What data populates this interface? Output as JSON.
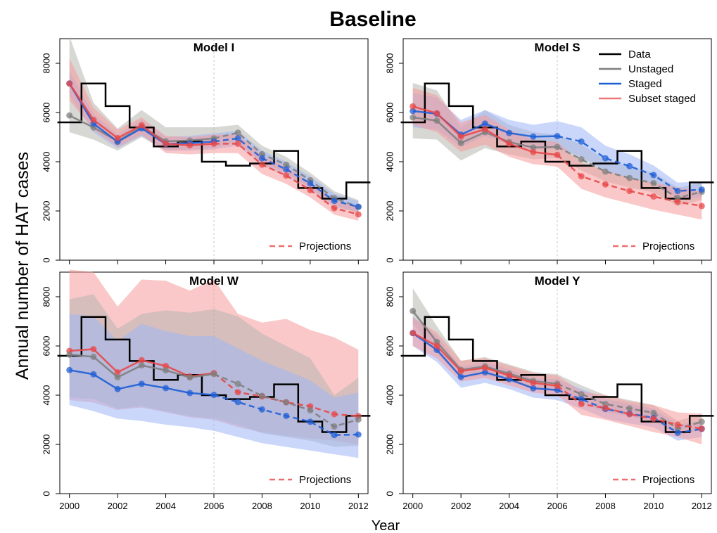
{
  "title": "Baseline",
  "xlabel": "Year",
  "ylabel": "Annual number of HAT cases",
  "chart_data": {
    "type": "line",
    "xlim": [
      1999.6,
      2012.4
    ],
    "ylim": [
      0,
      9000
    ],
    "x_ticks": [
      2000,
      2002,
      2004,
      2006,
      2008,
      2010,
      2012
    ],
    "y_ticks": [
      0,
      2000,
      4000,
      6000,
      8000
    ],
    "projection_start": 2006,
    "colors": {
      "data": "#000000",
      "unstaged": "#7f7f7f",
      "staged": "#1f5fd6",
      "subset": "#e8484a",
      "unstaged_band": "#b7b7b0",
      "staged_band": "#9fb6f5",
      "subset_band": "#f59a9a",
      "vline": "#c8c8c8"
    },
    "legend": {
      "items": [
        {
          "name": "Data",
          "key": "data"
        },
        {
          "name": "Unstaged",
          "key": "unstaged"
        },
        {
          "name": "Staged",
          "key": "staged"
        },
        {
          "name": "Subset staged",
          "key": "subset"
        }
      ],
      "projection_label": "Projections"
    },
    "data_step": {
      "years": [
        2000,
        2001,
        2002,
        2003,
        2004,
        2005,
        2006,
        2007,
        2008,
        2009,
        2010,
        2011,
        2012
      ],
      "values": [
        5600,
        7180,
        6260,
        5390,
        4620,
        4820,
        4000,
        3840,
        3930,
        4440,
        2930,
        2500,
        3160
      ]
    },
    "panels": [
      {
        "name": "Model I",
        "series": [
          {
            "key": "unstaged",
            "x": [
              2000,
              2001,
              2002,
              2003,
              2004,
              2005,
              2006,
              2007,
              2008,
              2009,
              2010,
              2011,
              2012
            ],
            "y": [
              5880,
              5390,
              4840,
              5410,
              4830,
              4860,
              4950,
              5180,
              4310,
              3880,
              3250,
              2520,
              2170
            ],
            "lo": [
              5200,
              4900,
              4450,
              5000,
              4450,
              4500,
              4550,
              4800,
              3950,
              3550,
              2950,
              2250,
              1900
            ],
            "hi": [
              9100,
              6400,
              5350,
              6100,
              5400,
              5400,
              5400,
              5500,
              4650,
              4200,
              3550,
              2800,
              2450
            ]
          },
          {
            "key": "staged",
            "x": [
              2000,
              2001,
              2002,
              2003,
              2004,
              2005,
              2006,
              2007,
              2008,
              2009,
              2010,
              2011,
              2012
            ],
            "y": [
              7180,
              5550,
              4810,
              5360,
              4720,
              4750,
              4820,
              4950,
              4140,
              3690,
              3120,
              2410,
              2170
            ],
            "lo": [
              6700,
              5200,
              4550,
              5050,
              4450,
              4450,
              4500,
              4650,
              3850,
              3400,
              2850,
              2150,
              1950
            ],
            "hi": [
              7700,
              5950,
              5100,
              5700,
              5000,
              5050,
              5150,
              5250,
              4450,
              4000,
              3400,
              2700,
              2400
            ]
          },
          {
            "key": "subset",
            "x": [
              2000,
              2001,
              2002,
              2003,
              2004,
              2005,
              2006,
              2007,
              2008,
              2009,
              2010,
              2011,
              2012
            ],
            "y": [
              7180,
              5700,
              4960,
              5480,
              4730,
              4670,
              4730,
              4730,
              3880,
              3440,
              2850,
              2110,
              1860
            ],
            "lo": [
              6500,
              5300,
              4600,
              5100,
              4350,
              4300,
              4350,
              4350,
              3500,
              3100,
              2550,
              1850,
              1600
            ],
            "hi": [
              8200,
              6200,
              5300,
              5800,
              5050,
              5000,
              5100,
              5100,
              4250,
              3800,
              3150,
              2450,
              2150
            ]
          }
        ]
      },
      {
        "name": "Model S",
        "series": [
          {
            "key": "unstaged",
            "x": [
              2000,
              2001,
              2002,
              2003,
              2004,
              2005,
              2006,
              2007,
              2008,
              2009,
              2010,
              2011,
              2012
            ],
            "y": [
              5800,
              5670,
              4760,
              5200,
              4800,
              4580,
              4600,
              4100,
              3600,
              3340,
              3130,
              2530,
              2780
            ],
            "lo": [
              4950,
              4900,
              4050,
              4550,
              4300,
              4100,
              4150,
              3650,
              3200,
              2950,
              2750,
              2200,
              2450
            ],
            "hi": [
              7200,
              6900,
              5400,
              6100,
              5500,
              5200,
              5100,
              4700,
              4100,
              3800,
              3550,
              2950,
              3150
            ]
          },
          {
            "key": "staged",
            "x": [
              2000,
              2001,
              2002,
              2003,
              2004,
              2005,
              2006,
              2007,
              2008,
              2009,
              2010,
              2011,
              2012
            ],
            "y": [
              6060,
              5950,
              5100,
              5550,
              5170,
              5020,
              5040,
              4820,
              4140,
              3820,
              3460,
              2810,
              2870
            ],
            "lo": [
              5400,
              5300,
              4600,
              5050,
              4700,
              4500,
              4550,
              4200,
              3600,
              3350,
              3050,
              2500,
              2550
            ],
            "hi": [
              6800,
              6600,
              5700,
              6100,
              5700,
              5500,
              5650,
              5400,
              4650,
              4300,
              3850,
              3150,
              3200
            ]
          },
          {
            "key": "subset",
            "x": [
              2000,
              2001,
              2002,
              2003,
              2004,
              2005,
              2006,
              2007,
              2008,
              2009,
              2010,
              2011,
              2012
            ],
            "y": [
              6250,
              5970,
              5020,
              5320,
              4730,
              4390,
              4280,
              3410,
              3080,
              2810,
              2590,
              2370,
              2200
            ],
            "lo": [
              5500,
              5200,
              4400,
              4700,
              4200,
              3900,
              3800,
              2900,
              2550,
              2300,
              2050,
              1850,
              1650
            ],
            "hi": [
              7000,
              6700,
              5600,
              5900,
              5300,
              4900,
              4800,
              3950,
              3650,
              3350,
              3150,
              2950,
              2800
            ]
          }
        ]
      },
      {
        "name": "Model W",
        "series": [
          {
            "key": "subset",
            "x": [
              2000,
              2001,
              2002,
              2003,
              2004,
              2005,
              2006,
              2007,
              2008,
              2009,
              2010,
              2011,
              2012
            ],
            "y": [
              5800,
              5870,
              4930,
              5420,
              5190,
              4760,
              4900,
              4120,
              3950,
              3710,
              3550,
              3230,
              3150
            ],
            "lo": [
              3800,
              3700,
              3400,
              3500,
              3300,
              3100,
              3000,
              2700,
              2500,
              2350,
              2250,
              2150,
              2000
            ],
            "hi": [
              9100,
              9000,
              7600,
              8700,
              8650,
              8250,
              8700,
              7300,
              6950,
              7100,
              6650,
              6350,
              5850
            ]
          },
          {
            "key": "unstaged",
            "x": [
              2000,
              2001,
              2002,
              2003,
              2004,
              2005,
              2006,
              2007,
              2008,
              2009,
              2010,
              2011,
              2012
            ],
            "y": [
              5650,
              5560,
              4730,
              5210,
              5010,
              4720,
              4860,
              4460,
              3970,
              3710,
              3390,
              2730,
              3010
            ],
            "lo": [
              3900,
              3850,
              3450,
              3550,
              3350,
              3150,
              3050,
              2800,
              2450,
              2300,
              2150,
              1900,
              1950
            ],
            "hi": [
              7900,
              8100,
              6700,
              7300,
              7450,
              7350,
              7500,
              7200,
              6500,
              6000,
              5500,
              4000,
              4700
            ]
          },
          {
            "key": "staged",
            "x": [
              2000,
              2001,
              2002,
              2003,
              2004,
              2005,
              2006,
              2007,
              2008,
              2009,
              2010,
              2011,
              2012
            ],
            "y": [
              5020,
              4850,
              4250,
              4460,
              4290,
              4090,
              4010,
              3720,
              3420,
              3160,
              2920,
              2380,
              2400
            ],
            "lo": [
              3600,
              3350,
              3050,
              2950,
              2800,
              2700,
              2550,
              2300,
              2050,
              1900,
              1750,
              1600,
              1450
            ],
            "hi": [
              7300,
              7200,
              6200,
              6900,
              6600,
              6400,
              6400,
              5900,
              5400,
              5000,
              4600,
              3900,
              4100
            ]
          }
        ]
      },
      {
        "name": "Model Y",
        "series": [
          {
            "key": "unstaged",
            "x": [
              2000,
              2001,
              2002,
              2003,
              2004,
              2005,
              2006,
              2007,
              2008,
              2009,
              2010,
              2011,
              2012
            ],
            "y": [
              7420,
              6160,
              5030,
              5170,
              4870,
              4580,
              4460,
              4040,
              3640,
              3460,
              3280,
              2640,
              2920
            ],
            "lo": [
              6900,
              5700,
              4700,
              4800,
              4550,
              4250,
              4150,
              3700,
              3300,
              3150,
              2950,
              2350,
              2600
            ],
            "hi": [
              8350,
              6800,
              5400,
              5550,
              5250,
              4950,
              4850,
              4400,
              4000,
              3800,
              3600,
              2950,
              3250
            ]
          },
          {
            "key": "staged",
            "x": [
              2000,
              2001,
              2002,
              2003,
              2004,
              2005,
              2006,
              2007,
              2008,
              2009,
              2010,
              2011,
              2012
            ],
            "y": [
              6520,
              5840,
              4740,
              4930,
              4650,
              4280,
              4210,
              3840,
              3440,
              3250,
              3080,
              2470,
              2630
            ],
            "lo": [
              6000,
              5350,
              4300,
              4500,
              4250,
              3900,
              3800,
              3450,
              3050,
              2850,
              2700,
              2150,
              2300
            ],
            "hi": [
              7200,
              6400,
              5150,
              5350,
              5050,
              4700,
              4650,
              4250,
              3850,
              3650,
              3450,
              2800,
              2950
            ]
          },
          {
            "key": "subset",
            "x": [
              2000,
              2001,
              2002,
              2003,
              2004,
              2005,
              2006,
              2007,
              2008,
              2009,
              2010,
              2011,
              2012
            ],
            "y": [
              6530,
              6000,
              4980,
              5110,
              4800,
              4500,
              4380,
              3640,
              3480,
              3230,
              3040,
              2800,
              2640
            ],
            "lo": [
              6000,
              5500,
              4550,
              4700,
              4400,
              4100,
              4000,
              3200,
              3000,
              2750,
              2500,
              2300,
              2000
            ],
            "hi": [
              7150,
              6550,
              5400,
              5500,
              5200,
              4900,
              4800,
              4150,
              4000,
              3750,
              3600,
              3300,
              3250
            ]
          }
        ]
      }
    ]
  }
}
